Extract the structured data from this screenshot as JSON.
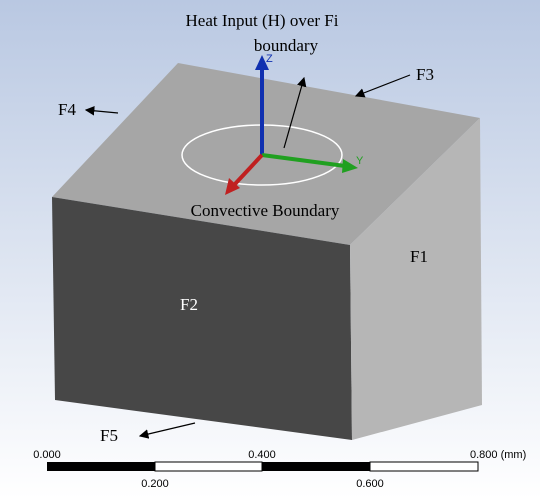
{
  "annotations": {
    "heat_input": [
      "Heat Input (H) over Fi",
      "boundary"
    ],
    "convective": "Convective Boundary"
  },
  "faces": {
    "f1": "F1",
    "f2": "F2",
    "f3": "F3",
    "f4": "F4",
    "f5": "F5"
  },
  "axes": {
    "z": "Z",
    "y": "Y"
  },
  "scale_bar": {
    "top_labels": [
      "0.000",
      "0.400",
      "0.800 (mm)"
    ],
    "bottom_labels": [
      "0.200",
      "0.600"
    ]
  }
}
